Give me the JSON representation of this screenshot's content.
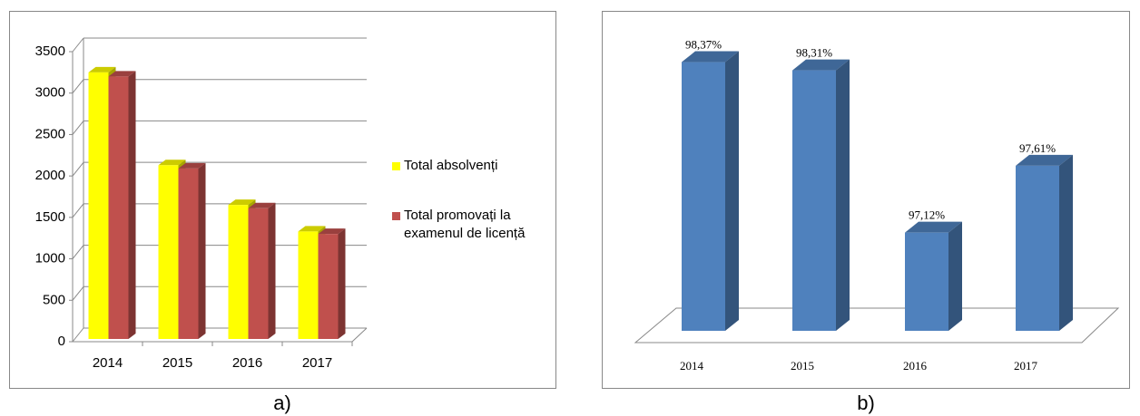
{
  "chart_data": [
    {
      "type": "bar3d",
      "caption": "a)",
      "categories": [
        "2014",
        "2015",
        "2016",
        "2017"
      ],
      "series": [
        {
          "name": "Total absolvenți",
          "color": "#ffff00",
          "values": [
            3250,
            2130,
            1650,
            1330
          ]
        },
        {
          "name": "Total promovați la examenul de licență",
          "color": "#c0504d",
          "values": [
            3200,
            2090,
            1610,
            1300
          ]
        }
      ],
      "ylim": [
        0,
        3500
      ],
      "yticks": [
        0,
        500,
        1000,
        1500,
        2000,
        2500,
        3000,
        3500
      ],
      "grid": true,
      "legend": "right"
    },
    {
      "type": "bar3d",
      "caption": "b)",
      "categories": [
        "2014",
        "2015",
        "2016",
        "2017"
      ],
      "values": [
        98.37,
        98.31,
        97.12,
        97.61
      ],
      "value_labels": [
        "98,37%",
        "98,31%",
        "97,12%",
        "97,61%"
      ],
      "color": "#4f81bd",
      "ylim": [
        96.4,
        98.5
      ]
    }
  ]
}
